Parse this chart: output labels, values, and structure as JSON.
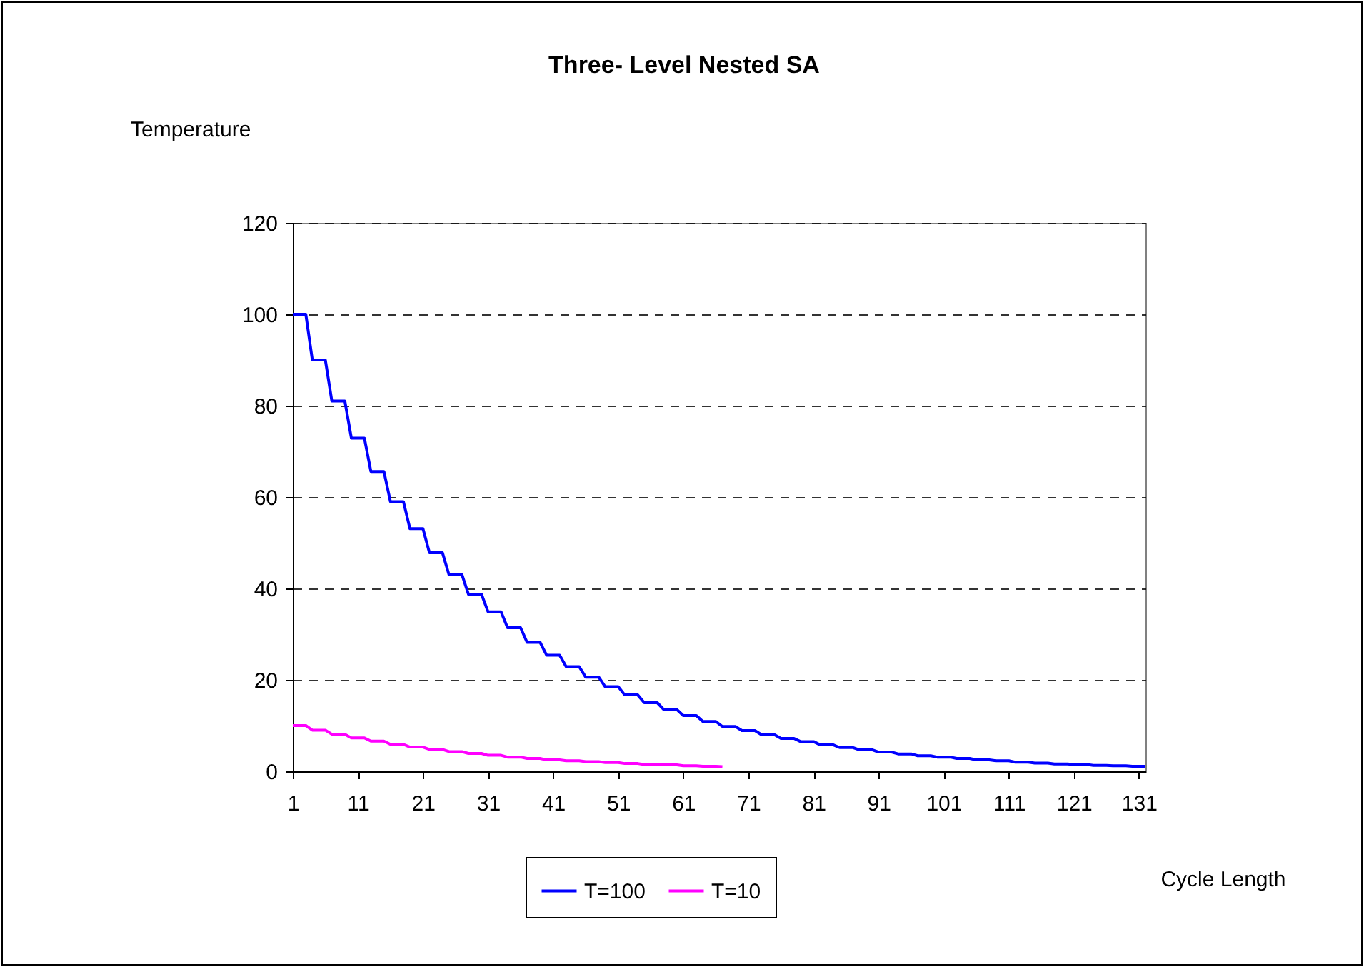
{
  "chart_data": {
    "type": "line",
    "title": "Three- Level Nested SA",
    "xlabel": "Cycle Length",
    "ylabel": "Temperature",
    "x": [
      1,
      2,
      3,
      4,
      5,
      6,
      7,
      8,
      9,
      10,
      11,
      12,
      13,
      14,
      15,
      16,
      17,
      18,
      19,
      20,
      21,
      22,
      23,
      24,
      25,
      26,
      27,
      28,
      29,
      30,
      31,
      32,
      33,
      34,
      35,
      36,
      37,
      38,
      39,
      40,
      41,
      42,
      43,
      44,
      45,
      46,
      47,
      48,
      49,
      50,
      51,
      52,
      53,
      54,
      55,
      56,
      57,
      58,
      59,
      60,
      61,
      62,
      63,
      64,
      65,
      66,
      67,
      68,
      69,
      70,
      71,
      72,
      73,
      74,
      75,
      76,
      77,
      78,
      79,
      80,
      81,
      82,
      83,
      84,
      85,
      86,
      87,
      88,
      89,
      90,
      91,
      92,
      93,
      94,
      95,
      96,
      97,
      98,
      99,
      100,
      101,
      102,
      103,
      104,
      105,
      106,
      107,
      108,
      109,
      110,
      111,
      112,
      113,
      114,
      115,
      116,
      117,
      118,
      119,
      120,
      121,
      122,
      123,
      124,
      125,
      126,
      127,
      128,
      129,
      130,
      131,
      132
    ],
    "series": [
      {
        "name": "T=100",
        "color": "#0000ff",
        "values": [
          100,
          100,
          100,
          90,
          90,
          90,
          81,
          81,
          81,
          72.9,
          72.9,
          72.9,
          65.6,
          65.6,
          65.6,
          59.0,
          59.0,
          59.0,
          53.1,
          53.1,
          53.1,
          47.8,
          47.8,
          47.8,
          43.0,
          43.0,
          43.0,
          38.7,
          38.7,
          38.7,
          34.9,
          34.9,
          34.9,
          31.4,
          31.4,
          31.4,
          28.2,
          28.2,
          28.2,
          25.4,
          25.4,
          25.4,
          22.9,
          22.9,
          22.9,
          20.6,
          20.6,
          20.6,
          18.5,
          18.5,
          18.5,
          16.7,
          16.7,
          16.7,
          15.0,
          15.0,
          15.0,
          13.5,
          13.5,
          13.5,
          12.2,
          12.2,
          12.2,
          10.9,
          10.9,
          10.9,
          9.8,
          9.8,
          9.8,
          8.9,
          8.9,
          8.9,
          8.0,
          8.0,
          8.0,
          7.2,
          7.2,
          7.2,
          6.5,
          6.5,
          6.5,
          5.8,
          5.8,
          5.8,
          5.2,
          5.2,
          5.2,
          4.7,
          4.7,
          4.7,
          4.2,
          4.2,
          4.2,
          3.8,
          3.8,
          3.8,
          3.4,
          3.4,
          3.4,
          3.1,
          3.1,
          3.1,
          2.8,
          2.8,
          2.8,
          2.5,
          2.5,
          2.5,
          2.3,
          2.3,
          2.3,
          2.0,
          2.0,
          2.0,
          1.8,
          1.8,
          1.8,
          1.6,
          1.6,
          1.6,
          1.5,
          1.5,
          1.5,
          1.3,
          1.3,
          1.3,
          1.2,
          1.2,
          1.2,
          1.1,
          1.1,
          1.1
        ]
      },
      {
        "name": "T=10",
        "color": "#ff00ff",
        "x": [
          1,
          2,
          3,
          4,
          5,
          6,
          7,
          8,
          9,
          10,
          11,
          12,
          13,
          14,
          15,
          16,
          17,
          18,
          19,
          20,
          21,
          22,
          23,
          24,
          25,
          26,
          27,
          28,
          29,
          30,
          31,
          32,
          33,
          34,
          35,
          36,
          37,
          38,
          39,
          40,
          41,
          42,
          43,
          44,
          45,
          46,
          47,
          48,
          49,
          50,
          51,
          52,
          53,
          54,
          55,
          56,
          57,
          58,
          59,
          60,
          61,
          62,
          63,
          64,
          65,
          66,
          67
        ],
        "values": [
          10,
          10,
          10,
          9,
          9,
          9,
          8.1,
          8.1,
          8.1,
          7.3,
          7.3,
          7.3,
          6.6,
          6.6,
          6.6,
          5.9,
          5.9,
          5.9,
          5.3,
          5.3,
          5.3,
          4.8,
          4.8,
          4.8,
          4.3,
          4.3,
          4.3,
          3.9,
          3.9,
          3.9,
          3.5,
          3.5,
          3.5,
          3.1,
          3.1,
          3.1,
          2.8,
          2.8,
          2.8,
          2.5,
          2.5,
          2.5,
          2.3,
          2.3,
          2.3,
          2.1,
          2.1,
          2.1,
          1.9,
          1.9,
          1.9,
          1.7,
          1.7,
          1.7,
          1.5,
          1.5,
          1.5,
          1.4,
          1.4,
          1.4,
          1.2,
          1.2,
          1.2,
          1.1,
          1.1,
          1.1,
          1.0
        ]
      }
    ],
    "xlim": [
      1,
      132
    ],
    "xticks": [
      1,
      11,
      21,
      31,
      41,
      51,
      61,
      71,
      81,
      91,
      101,
      111,
      121,
      131
    ],
    "ylim": [
      0,
      120
    ],
    "yticks": [
      0,
      20,
      40,
      60,
      80,
      100,
      120
    ],
    "grid": "y",
    "legend": "bottom",
    "marker": "none"
  }
}
